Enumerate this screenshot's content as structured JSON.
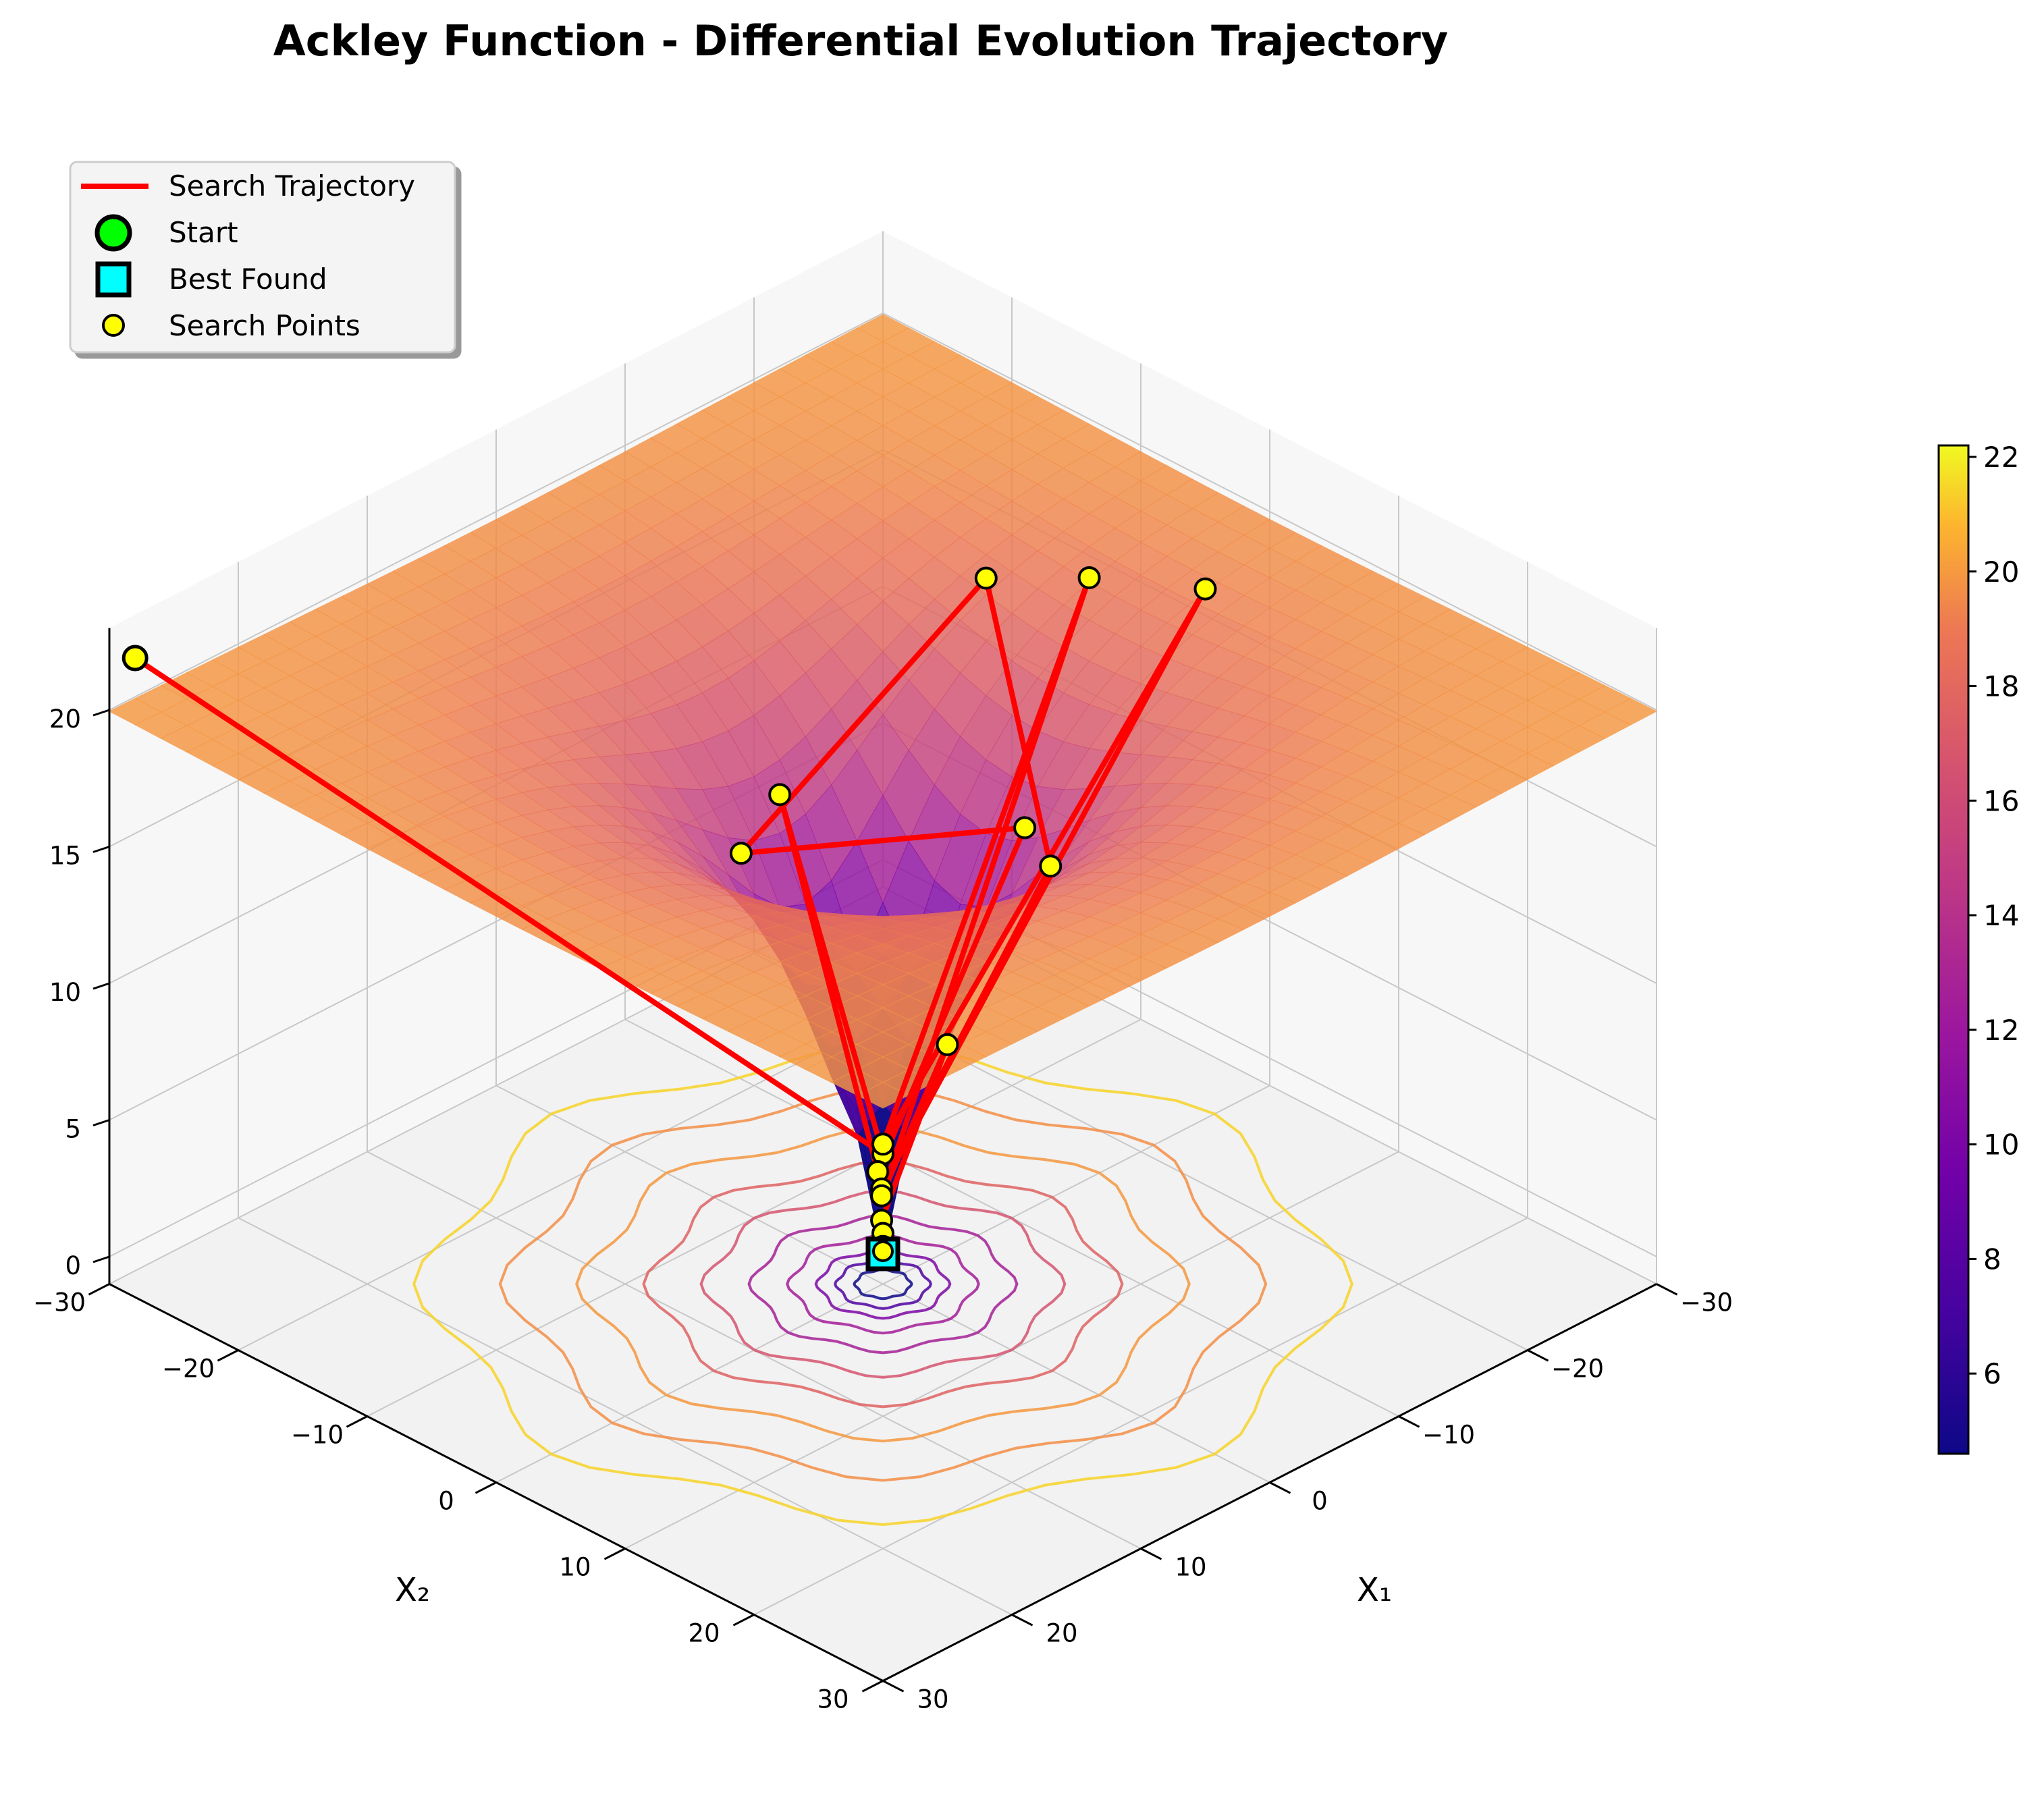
{
  "chart_data": {
    "type": "surface3d",
    "title": "Ackley Function - Differential Evolution Trajectory",
    "xlabel": "X₁",
    "ylabel": "X₂",
    "zlabel": "",
    "xlim": [
      -30,
      30
    ],
    "ylim": [
      -30,
      30
    ],
    "zlim": [
      -1,
      23
    ],
    "x_ticks": [
      "−30",
      "−20",
      "−10",
      "0",
      "10",
      "20",
      "30"
    ],
    "y_ticks": [
      "−30",
      "−20",
      "−10",
      "0",
      "10",
      "20",
      "30"
    ],
    "z_ticks": [
      "0",
      "5",
      "10",
      "15",
      "20"
    ],
    "colormap": "plasma",
    "colorbar": {
      "min": 4.6,
      "max": 22.2,
      "ticks": [
        "6",
        "8",
        "10",
        "12",
        "14",
        "16",
        "18",
        "20",
        "22"
      ]
    },
    "legend": {
      "placement": "upper-left",
      "entries": [
        {
          "label": "Search Trajectory",
          "color": "#ff0000",
          "marker": "line"
        },
        {
          "label": "Start",
          "color": "#00ff00",
          "marker": "circle"
        },
        {
          "label": "Best Found",
          "color": "#00ffff",
          "marker": "square"
        },
        {
          "label": "Search Points",
          "color": "#ffff00",
          "marker": "small-circle"
        }
      ]
    },
    "trajectory": [
      {
        "x": 29,
        "y": -29,
        "z": 21.9
      },
      {
        "x": 0.5,
        "y": 0.5,
        "z": 4.0
      },
      {
        "x": -2,
        "y": -10,
        "z": 14.0
      },
      {
        "x": 0.8,
        "y": 0.4,
        "z": 3.4
      },
      {
        "x": -9,
        "y": 2,
        "z": 14.0
      },
      {
        "x": 6,
        "y": -5,
        "z": 15.0
      },
      {
        "x": -15,
        "y": -7,
        "z": 19.5
      },
      {
        "x": -4,
        "y": 9,
        "z": 15.5
      },
      {
        "x": 0.3,
        "y": 0.2,
        "z": 2.6
      },
      {
        "x": -20,
        "y": 5,
        "z": 20.8
      },
      {
        "x": 1,
        "y": 1,
        "z": 4.6
      },
      {
        "x": -18,
        "y": -2,
        "z": 20.0
      },
      {
        "x": 0.2,
        "y": 0.1,
        "z": 2.3
      },
      {
        "x": -2,
        "y": 3,
        "z": 8.0
      },
      {
        "x": 0.4,
        "y": 0.3,
        "z": 1.5
      },
      {
        "x": 0.1,
        "y": 0.1,
        "z": 0.9
      },
      {
        "x": 0.05,
        "y": 0.05,
        "z": 0.4
      }
    ],
    "start": {
      "x": 29,
      "y": -29,
      "z": 21.9
    },
    "best_found": {
      "x": 0.0,
      "y": 0.0,
      "z": 0.1
    },
    "colors": {
      "trajectory": "#ff0000",
      "start": "#00ff00",
      "best": "#00ffff",
      "points": "#ffff00"
    }
  }
}
